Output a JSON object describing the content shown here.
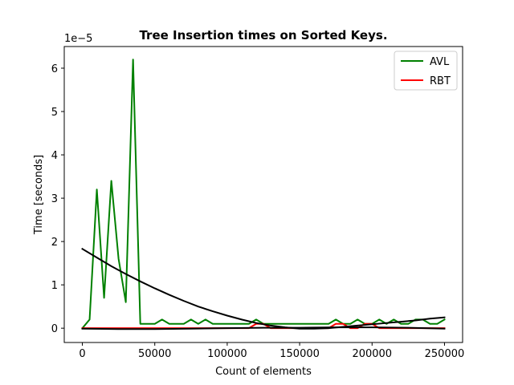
{
  "chart_data": {
    "type": "line",
    "title": "Tree Insertion times on Sorted Keys.",
    "xlabel": "Count of elements",
    "ylabel": "Time [seconds]",
    "y_multiplier_label": "1e−5",
    "xlim": [
      -12500,
      262500
    ],
    "ylim": [
      -0.33,
      6.5
    ],
    "xticks": [
      0,
      50000,
      100000,
      150000,
      200000,
      250000
    ],
    "xtick_labels": [
      "0",
      "50000",
      "100000",
      "150000",
      "200000",
      "250000"
    ],
    "yticks": [
      0,
      1,
      2,
      3,
      4,
      5,
      6
    ],
    "ytick_labels": [
      "0",
      "1",
      "2",
      "3",
      "4",
      "5",
      "6"
    ],
    "grid": false,
    "legend_position": "top-right",
    "series": [
      {
        "name": "AVL",
        "color": "#008000",
        "x": [
          0,
          5000,
          10000,
          15000,
          20000,
          25000,
          30000,
          35000,
          40000,
          45000,
          50000,
          55000,
          60000,
          65000,
          70000,
          75000,
          80000,
          85000,
          90000,
          95000,
          100000,
          105000,
          110000,
          115000,
          120000,
          125000,
          130000,
          135000,
          140000,
          145000,
          150000,
          155000,
          160000,
          165000,
          170000,
          175000,
          180000,
          185000,
          190000,
          195000,
          200000,
          205000,
          210000,
          215000,
          220000,
          225000,
          230000,
          235000,
          240000,
          245000,
          250000
        ],
        "values": [
          0.0,
          0.2,
          3.2,
          0.7,
          3.4,
          1.6,
          0.6,
          6.2,
          0.1,
          0.1,
          0.1,
          0.2,
          0.1,
          0.1,
          0.1,
          0.2,
          0.1,
          0.2,
          0.1,
          0.1,
          0.1,
          0.1,
          0.1,
          0.1,
          0.2,
          0.1,
          0.1,
          0.1,
          0.1,
          0.1,
          0.1,
          0.1,
          0.1,
          0.1,
          0.1,
          0.2,
          0.1,
          0.1,
          0.2,
          0.1,
          0.1,
          0.2,
          0.1,
          0.2,
          0.1,
          0.1,
          0.2,
          0.2,
          0.1,
          0.1,
          0.2
        ]
      },
      {
        "name": "RBT",
        "color": "#ff0000",
        "x": [
          0,
          10000,
          20000,
          30000,
          40000,
          50000,
          60000,
          70000,
          80000,
          90000,
          100000,
          110000,
          115000,
          120000,
          125000,
          130000,
          140000,
          150000,
          160000,
          170000,
          175000,
          180000,
          185000,
          190000,
          195000,
          200000,
          205000,
          210000,
          220000,
          230000,
          240000,
          250000
        ],
        "values": [
          0.0,
          0.0,
          0.0,
          0.0,
          0.0,
          0.0,
          0.0,
          0.0,
          0.0,
          0.0,
          0.0,
          0.0,
          0.0,
          0.1,
          0.1,
          0.0,
          0.0,
          0.0,
          0.0,
          0.0,
          0.1,
          0.1,
          0.0,
          0.0,
          0.1,
          0.1,
          0.0,
          0.0,
          0.0,
          0.0,
          0.0,
          0.0
        ]
      },
      {
        "color": "#000000",
        "x": [
          0,
          10000,
          20000,
          30000,
          40000,
          50000,
          60000,
          70000,
          80000,
          90000,
          100000,
          110000,
          120000,
          130000,
          140000,
          150000,
          160000,
          170000,
          180000,
          190000,
          200000,
          210000,
          220000,
          230000,
          240000,
          250000
        ],
        "values": [
          1.83,
          1.63,
          1.43,
          1.25,
          1.08,
          0.92,
          0.77,
          0.63,
          0.5,
          0.39,
          0.29,
          0.2,
          0.12,
          0.06,
          0.02,
          -0.01,
          -0.01,
          0.0,
          0.03,
          0.06,
          0.09,
          0.12,
          0.15,
          0.18,
          0.22,
          0.25
        ]
      },
      {
        "color": "#000000",
        "x": [
          0,
          25000,
          50000,
          75000,
          100000,
          125000,
          150000,
          175000,
          200000,
          225000,
          250000
        ],
        "values": [
          -0.01,
          -0.02,
          -0.02,
          -0.01,
          0.0,
          0.01,
          0.01,
          0.02,
          0.02,
          0.01,
          -0.01
        ]
      }
    ]
  }
}
